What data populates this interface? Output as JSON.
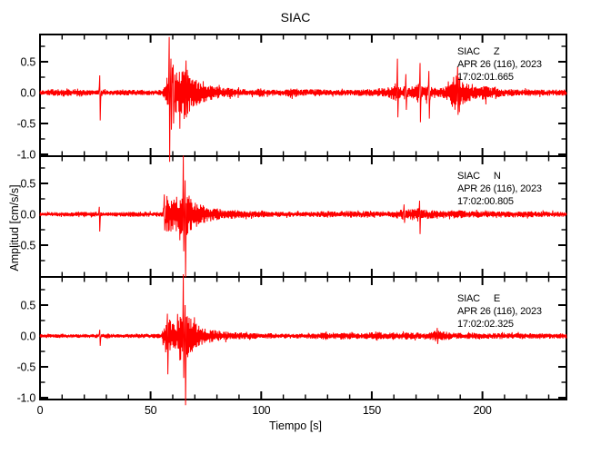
{
  "title": "SIAC",
  "xlabel": "Tiempo [s]",
  "ylabel": "Amplitud [cm/s/s]",
  "colors": {
    "trace": "#ff0000",
    "axis": "#000000",
    "background": "#ffffff"
  },
  "panels": [
    {
      "station": "SIAC",
      "component": "Z",
      "date": "APR 26 (116), 2023",
      "time": "17:02:01.665"
    },
    {
      "station": "SIAC",
      "component": "N",
      "date": "APR 26 (116), 2023",
      "time": "17:02:00.805"
    },
    {
      "station": "SIAC",
      "component": "E",
      "date": "APR 26 (116), 2023",
      "time": "17:02:02.325"
    }
  ],
  "chart_data": {
    "type": "line",
    "title": "SIAC",
    "xlabel": "Tiempo [s]",
    "ylabel": "Amplitud [cm/s/s]",
    "xlim": [
      0,
      238
    ],
    "ylim": [
      -1.03,
      0.94
    ],
    "x_major_ticks": [
      0,
      50,
      100,
      150,
      200
    ],
    "x_minor_step": 10,
    "y_minor_step": 0.25,
    "y_major_ticks": [
      0.5,
      0.0,
      -0.5,
      -1.0
    ],
    "y_tick_labels_per_panel": [
      [
        0.5,
        0.0,
        -0.5,
        -1.0
      ],
      [
        0.5,
        0.0,
        -0.5
      ],
      [
        0.5,
        0.0,
        -0.5,
        -1.0
      ]
    ],
    "grid": false,
    "legend": "none",
    "series": [
      {
        "name": "SIAC Z",
        "annotation": [
          "SIAC   Z",
          "APR 26 (116), 2023",
          "17:02:01.665"
        ],
        "envelope": [
          [
            0,
            0.035
          ],
          [
            4,
            0.04
          ],
          [
            6,
            0.07
          ],
          [
            9,
            0.05
          ],
          [
            12,
            0.075
          ],
          [
            15,
            0.05
          ],
          [
            17,
            0.08
          ],
          [
            20,
            0.05
          ],
          [
            26,
            0.04
          ],
          [
            30,
            0.04
          ],
          [
            40,
            0.045
          ],
          [
            50,
            0.04
          ],
          [
            55,
            0.045
          ],
          [
            56,
            0.08
          ],
          [
            57,
            0.18
          ],
          [
            58,
            0.35
          ],
          [
            59,
            0.6
          ],
          [
            60,
            0.42
          ],
          [
            61,
            0.32
          ],
          [
            62,
            0.38
          ],
          [
            63,
            0.45
          ],
          [
            64,
            0.35
          ],
          [
            65,
            0.42
          ],
          [
            66,
            0.5
          ],
          [
            67,
            0.35
          ],
          [
            68,
            0.28
          ],
          [
            70,
            0.22
          ],
          [
            73,
            0.18
          ],
          [
            76,
            0.14
          ],
          [
            80,
            0.1
          ],
          [
            85,
            0.08
          ],
          [
            90,
            0.065
          ],
          [
            95,
            0.055
          ],
          [
            100,
            0.07
          ],
          [
            103,
            0.05
          ],
          [
            110,
            0.05
          ],
          [
            115,
            0.08
          ],
          [
            118,
            0.05
          ],
          [
            125,
            0.06
          ],
          [
            130,
            0.05
          ],
          [
            140,
            0.05
          ],
          [
            148,
            0.055
          ],
          [
            152,
            0.07
          ],
          [
            155,
            0.08
          ],
          [
            158,
            0.09
          ],
          [
            160,
            0.12
          ],
          [
            161,
            0.2
          ],
          [
            162,
            0.12
          ],
          [
            164,
            0.1
          ],
          [
            165,
            0.15
          ],
          [
            166,
            0.1
          ],
          [
            168,
            0.1
          ],
          [
            170,
            0.12
          ],
          [
            171,
            0.18
          ],
          [
            172,
            0.12
          ],
          [
            174,
            0.1
          ],
          [
            175,
            0.14
          ],
          [
            176,
            0.1
          ],
          [
            178,
            0.09
          ],
          [
            180,
            0.08
          ],
          [
            183,
            0.09
          ],
          [
            185,
            0.15
          ],
          [
            186,
            0.25
          ],
          [
            187,
            0.3
          ],
          [
            188,
            0.35
          ],
          [
            189,
            0.3
          ],
          [
            190,
            0.25
          ],
          [
            191,
            0.2
          ],
          [
            193,
            0.15
          ],
          [
            195,
            0.12
          ],
          [
            198,
            0.09
          ],
          [
            200,
            0.12
          ],
          [
            201,
            0.15
          ],
          [
            202,
            0.12
          ],
          [
            204,
            0.08
          ],
          [
            206,
            0.1
          ],
          [
            208,
            0.07
          ],
          [
            212,
            0.06
          ],
          [
            220,
            0.055
          ],
          [
            228,
            0.05
          ],
          [
            238,
            0.05
          ]
        ],
        "spikes": [
          [
            27,
            0.28,
            -0.45
          ],
          [
            58.4,
            0.9,
            -1.12
          ],
          [
            59.2,
            0.55,
            -0.6
          ],
          [
            60.2,
            0.45,
            -0.5
          ],
          [
            66,
            0.52,
            -0.4
          ],
          [
            161.5,
            0.55,
            -0.4
          ],
          [
            165.3,
            0.3,
            -0.28
          ],
          [
            171.8,
            0.48,
            -0.48
          ],
          [
            175.8,
            0.35,
            -0.42
          ],
          [
            188.8,
            0.42,
            -0.36
          ]
        ]
      },
      {
        "name": "SIAC N",
        "annotation": [
          "SIAC   N",
          "APR 26 (116), 2023",
          "17:02:00.805"
        ],
        "envelope": [
          [
            0,
            0.03
          ],
          [
            10,
            0.035
          ],
          [
            20,
            0.04
          ],
          [
            21,
            0.06
          ],
          [
            22,
            0.04
          ],
          [
            26,
            0.04
          ],
          [
            28,
            0.035
          ],
          [
            35,
            0.035
          ],
          [
            42,
            0.045
          ],
          [
            48,
            0.04
          ],
          [
            55,
            0.04
          ],
          [
            56,
            0.12
          ],
          [
            57,
            0.28
          ],
          [
            58,
            0.35
          ],
          [
            59,
            0.3
          ],
          [
            60,
            0.32
          ],
          [
            61,
            0.28
          ],
          [
            62,
            0.3
          ],
          [
            63,
            0.28
          ],
          [
            64,
            0.35
          ],
          [
            65,
            0.45
          ],
          [
            66,
            0.4
          ],
          [
            67,
            0.32
          ],
          [
            68,
            0.28
          ],
          [
            69,
            0.25
          ],
          [
            71,
            0.2
          ],
          [
            74,
            0.15
          ],
          [
            78,
            0.11
          ],
          [
            82,
            0.09
          ],
          [
            88,
            0.07
          ],
          [
            95,
            0.055
          ],
          [
            105,
            0.045
          ],
          [
            115,
            0.04
          ],
          [
            125,
            0.045
          ],
          [
            130,
            0.055
          ],
          [
            133,
            0.045
          ],
          [
            140,
            0.06
          ],
          [
            143,
            0.05
          ],
          [
            146,
            0.055
          ],
          [
            150,
            0.045
          ],
          [
            155,
            0.05
          ],
          [
            160,
            0.055
          ],
          [
            163,
            0.08
          ],
          [
            164,
            0.1
          ],
          [
            165,
            0.08
          ],
          [
            167,
            0.09
          ],
          [
            169,
            0.08
          ],
          [
            171,
            0.12
          ],
          [
            172,
            0.1
          ],
          [
            174,
            0.08
          ],
          [
            177,
            0.07
          ],
          [
            180,
            0.06
          ],
          [
            185,
            0.06
          ],
          [
            188,
            0.07
          ],
          [
            192,
            0.06
          ],
          [
            200,
            0.05
          ],
          [
            205,
            0.06
          ],
          [
            210,
            0.05
          ],
          [
            220,
            0.05
          ],
          [
            230,
            0.045
          ],
          [
            238,
            0.045
          ]
        ],
        "spikes": [
          [
            26.8,
            0.12,
            -0.28
          ],
          [
            56.2,
            0.32,
            -0.26
          ],
          [
            64.8,
            0.95,
            -0.6
          ],
          [
            65.6,
            0.55,
            -1.02
          ],
          [
            164.5,
            0.16,
            -0.14
          ],
          [
            171.5,
            0.22,
            -0.32
          ]
        ]
      },
      {
        "name": "SIAC E",
        "annotation": [
          "SIAC   E",
          "APR 26 (116), 2023",
          "17:02:02.325"
        ],
        "envelope": [
          [
            0,
            0.03
          ],
          [
            10,
            0.03
          ],
          [
            20,
            0.03
          ],
          [
            26,
            0.035
          ],
          [
            28,
            0.03
          ],
          [
            30,
            0.05
          ],
          [
            32,
            0.03
          ],
          [
            40,
            0.035
          ],
          [
            50,
            0.035
          ],
          [
            55,
            0.04
          ],
          [
            56,
            0.15
          ],
          [
            57,
            0.3
          ],
          [
            58,
            0.35
          ],
          [
            59,
            0.28
          ],
          [
            60,
            0.22
          ],
          [
            61,
            0.2
          ],
          [
            62,
            0.25
          ],
          [
            63,
            0.35
          ],
          [
            64,
            0.45
          ],
          [
            65,
            0.5
          ],
          [
            66,
            0.45
          ],
          [
            67,
            0.35
          ],
          [
            68,
            0.3
          ],
          [
            70,
            0.22
          ],
          [
            72,
            0.18
          ],
          [
            75,
            0.13
          ],
          [
            78,
            0.1
          ],
          [
            82,
            0.08
          ],
          [
            88,
            0.06
          ],
          [
            95,
            0.05
          ],
          [
            105,
            0.045
          ],
          [
            115,
            0.04
          ],
          [
            125,
            0.05
          ],
          [
            128,
            0.06
          ],
          [
            131,
            0.05
          ],
          [
            135,
            0.065
          ],
          [
            138,
            0.05
          ],
          [
            141,
            0.055
          ],
          [
            145,
            0.045
          ],
          [
            150,
            0.06
          ],
          [
            152,
            0.08
          ],
          [
            154,
            0.06
          ],
          [
            158,
            0.05
          ],
          [
            162,
            0.05
          ],
          [
            166,
            0.06
          ],
          [
            170,
            0.05
          ],
          [
            175,
            0.05
          ],
          [
            178,
            0.08
          ],
          [
            180,
            0.1
          ],
          [
            182,
            0.08
          ],
          [
            185,
            0.06
          ],
          [
            190,
            0.05
          ],
          [
            195,
            0.055
          ],
          [
            200,
            0.045
          ],
          [
            210,
            0.05
          ],
          [
            215,
            0.045
          ],
          [
            225,
            0.045
          ],
          [
            238,
            0.04
          ]
        ],
        "spikes": [
          [
            27,
            0.1,
            -0.16
          ],
          [
            57.5,
            0.36,
            -0.62
          ],
          [
            64.8,
            1.0,
            -0.68
          ],
          [
            65.5,
            0.5,
            -1.12
          ],
          [
            179.5,
            0.13,
            -0.13
          ]
        ]
      }
    ]
  }
}
